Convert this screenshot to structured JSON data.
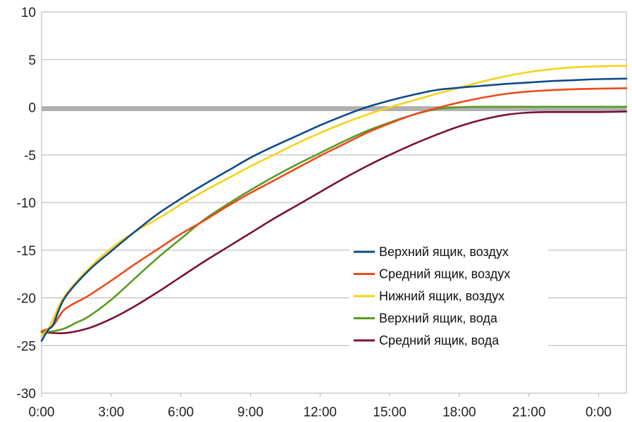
{
  "chart_data": {
    "type": "line",
    "title": "",
    "xlabel": "",
    "ylabel": "",
    "ylim": [
      -30,
      10
    ],
    "xlim_hours": [
      0,
      25.2
    ],
    "x_ticks": [
      {
        "hour": 0,
        "label": "0:00"
      },
      {
        "hour": 3,
        "label": "3:00"
      },
      {
        "hour": 6,
        "label": "6:00"
      },
      {
        "hour": 9,
        "label": "9:00"
      },
      {
        "hour": 12,
        "label": "12:00"
      },
      {
        "hour": 15,
        "label": "15:00"
      },
      {
        "hour": 18,
        "label": "18:00"
      },
      {
        "hour": 21,
        "label": "21:00"
      },
      {
        "hour": 24,
        "label": "0:00"
      }
    ],
    "y_ticks": [
      {
        "value": 10,
        "label": "10"
      },
      {
        "value": 5,
        "label": "5"
      },
      {
        "value": 0,
        "label": "0"
      },
      {
        "value": -5,
        "label": "-5"
      },
      {
        "value": -10,
        "label": "-10"
      },
      {
        "value": -15,
        "label": "-15"
      },
      {
        "value": -20,
        "label": "-20"
      },
      {
        "value": -25,
        "label": "-25"
      },
      {
        "value": -30,
        "label": "-30"
      }
    ],
    "grid": "horizontal",
    "legend_position": "lower-right",
    "reference_band": {
      "y": -0.15,
      "color": "#b0b0b0"
    },
    "series": [
      {
        "name": "Верхний ящик, воздух",
        "color": "#0d4a8a",
        "points": [
          [
            0,
            -24.5
          ],
          [
            0.3,
            -23.3
          ],
          [
            0.5,
            -22.8
          ],
          [
            1,
            -20
          ],
          [
            2,
            -17.2
          ],
          [
            3,
            -15.1
          ],
          [
            4,
            -13.1
          ],
          [
            5,
            -11.2
          ],
          [
            6,
            -9.6
          ],
          [
            7,
            -8.1
          ],
          [
            8,
            -6.7
          ],
          [
            9,
            -5.3
          ],
          [
            10,
            -4.1
          ],
          [
            11,
            -3
          ],
          [
            12,
            -1.9
          ],
          [
            13,
            -0.9
          ],
          [
            14,
            0
          ],
          [
            15,
            0.7
          ],
          [
            16,
            1.3
          ],
          [
            17,
            1.8
          ],
          [
            18,
            2.05
          ],
          [
            19,
            2.25
          ],
          [
            20,
            2.45
          ],
          [
            21,
            2.6
          ],
          [
            22,
            2.75
          ],
          [
            23,
            2.85
          ],
          [
            24,
            2.95
          ],
          [
            25.2,
            3
          ]
        ]
      },
      {
        "name": "Средний ящик, воздух",
        "color": "#ef4a1a",
        "points": [
          [
            0,
            -23.5
          ],
          [
            0.5,
            -22.9
          ],
          [
            1,
            -21.2
          ],
          [
            2,
            -19.8
          ],
          [
            3,
            -18.2
          ],
          [
            4,
            -16.5
          ],
          [
            5,
            -14.9
          ],
          [
            6,
            -13.3
          ],
          [
            7,
            -11.9
          ],
          [
            8,
            -10.4
          ],
          [
            9,
            -9
          ],
          [
            10,
            -7.7
          ],
          [
            11,
            -6.4
          ],
          [
            12,
            -5.1
          ],
          [
            13,
            -3.9
          ],
          [
            14,
            -2.7
          ],
          [
            15,
            -1.7
          ],
          [
            16,
            -0.8
          ],
          [
            17,
            -0.1
          ],
          [
            18,
            0.5
          ],
          [
            19,
            1
          ],
          [
            20,
            1.4
          ],
          [
            21,
            1.65
          ],
          [
            22,
            1.8
          ],
          [
            23,
            1.9
          ],
          [
            24,
            1.95
          ],
          [
            25.2,
            2
          ]
        ]
      },
      {
        "name": "Нижний ящик, воздух",
        "color": "#f5d218",
        "points": [
          [
            0,
            -24
          ],
          [
            0.3,
            -23.2
          ],
          [
            0.5,
            -22.2
          ],
          [
            1,
            -19.8
          ],
          [
            2,
            -17
          ],
          [
            3,
            -14.8
          ],
          [
            4,
            -13.1
          ],
          [
            5,
            -11.7
          ],
          [
            6,
            -10.2
          ],
          [
            7,
            -8.8
          ],
          [
            8,
            -7.5
          ],
          [
            9,
            -6.2
          ],
          [
            10,
            -5
          ],
          [
            11,
            -3.8
          ],
          [
            12,
            -2.7
          ],
          [
            13,
            -1.7
          ],
          [
            14,
            -0.8
          ],
          [
            15,
            0
          ],
          [
            16,
            0.7
          ],
          [
            17,
            1.4
          ],
          [
            18,
            2.05
          ],
          [
            19,
            2.7
          ],
          [
            20,
            3.25
          ],
          [
            21,
            3.7
          ],
          [
            22,
            4
          ],
          [
            23,
            4.2
          ],
          [
            24,
            4.3
          ],
          [
            25.2,
            4.35
          ]
        ]
      },
      {
        "name": "Верхний ящик, вода",
        "color": "#5a9a22",
        "points": [
          [
            0,
            -23.6
          ],
          [
            0.5,
            -23.5
          ],
          [
            1,
            -23.2
          ],
          [
            1.5,
            -22.6
          ],
          [
            2,
            -22
          ],
          [
            3,
            -20.2
          ],
          [
            4,
            -18
          ],
          [
            5,
            -15.8
          ],
          [
            6,
            -13.8
          ],
          [
            7,
            -11.8
          ],
          [
            8,
            -10.2
          ],
          [
            9,
            -8.7
          ],
          [
            10,
            -7.3
          ],
          [
            11,
            -6
          ],
          [
            12,
            -4.8
          ],
          [
            13,
            -3.6
          ],
          [
            14,
            -2.5
          ],
          [
            15,
            -1.6
          ],
          [
            16,
            -0.8
          ],
          [
            17,
            -0.2
          ],
          [
            18,
            0
          ],
          [
            19,
            0.05
          ],
          [
            20,
            0.05
          ],
          [
            21,
            0.05
          ],
          [
            22,
            0.05
          ],
          [
            23,
            0.05
          ],
          [
            24,
            0.05
          ],
          [
            25.2,
            0.05
          ]
        ]
      },
      {
        "name": "Средний ящик, вода",
        "color": "#7a1130",
        "points": [
          [
            0,
            -23.6
          ],
          [
            1,
            -23.7
          ],
          [
            2,
            -23.2
          ],
          [
            3,
            -22.2
          ],
          [
            4,
            -20.9
          ],
          [
            5,
            -19.4
          ],
          [
            6,
            -17.8
          ],
          [
            7,
            -16.2
          ],
          [
            8,
            -14.7
          ],
          [
            9,
            -13.2
          ],
          [
            10,
            -11.7
          ],
          [
            11,
            -10.3
          ],
          [
            12,
            -8.9
          ],
          [
            13,
            -7.5
          ],
          [
            14,
            -6.2
          ],
          [
            15,
            -5
          ],
          [
            16,
            -3.9
          ],
          [
            17,
            -2.9
          ],
          [
            18,
            -2
          ],
          [
            19,
            -1.3
          ],
          [
            20,
            -0.8
          ],
          [
            21,
            -0.55
          ],
          [
            22,
            -0.5
          ],
          [
            23,
            -0.5
          ],
          [
            24,
            -0.5
          ],
          [
            25.2,
            -0.45
          ]
        ]
      }
    ]
  }
}
